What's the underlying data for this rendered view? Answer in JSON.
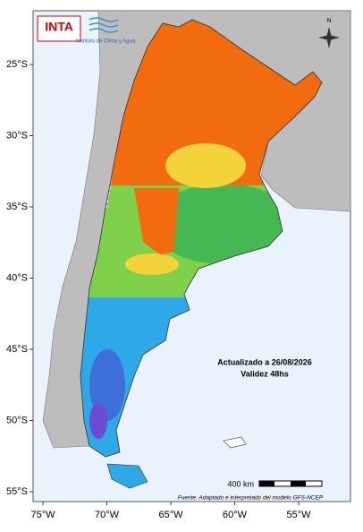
{
  "logo": {
    "name": "INTA",
    "institute": "Instituto de Clima y Agua"
  },
  "map": {
    "lat_labels": [
      "25°S",
      "30°S",
      "35°S",
      "40°S",
      "45°S",
      "50°S",
      "55°S"
    ],
    "lon_labels": [
      "75°W",
      "70°W",
      "65°W",
      "60°W",
      "55°W"
    ],
    "north": "N",
    "updated": "Actualizado a 26/08/2026",
    "validity": "Validez 48hs",
    "scale": "400 km",
    "source": "Fuente: Adaptado e interpretado del modelo GFS-NCEP"
  }
}
